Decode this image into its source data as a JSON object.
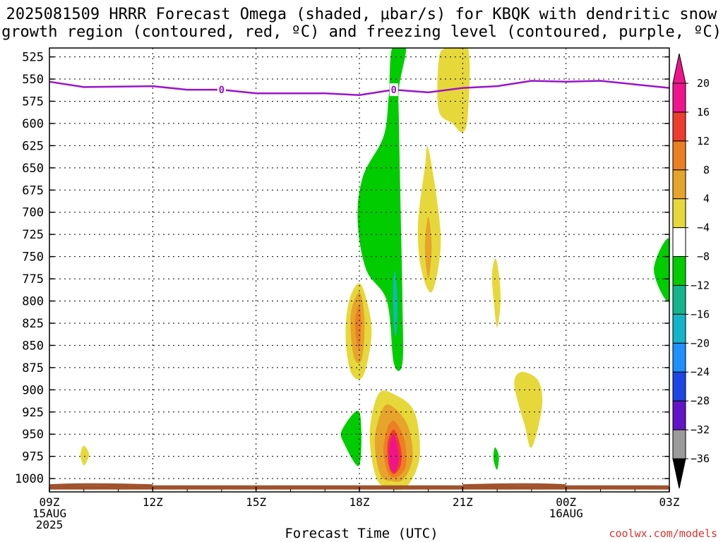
{
  "chart_data": {
    "type": "heatmap",
    "title": "2025081509 HRRR Forecast Omega (shaded, μbar/s) for KBQK with dendritic snow",
    "subtitle": "growth region (contoured, red, ºC) and freezing level (contoured, purple, ºC)",
    "xlabel": "Forecast Time (UTC)",
    "credit": "coolwx.com/models",
    "y_axis": {
      "scale": "pressure (inverted)",
      "ylim": [
        1015,
        515
      ],
      "ticks": [
        "525",
        "550",
        "575",
        "600",
        "625",
        "650",
        "675",
        "700",
        "725",
        "750",
        "775",
        "800",
        "825",
        "850",
        "875",
        "900",
        "925",
        "950",
        "975",
        "1000"
      ]
    },
    "x_axis": {
      "xlim_hours": [
        0,
        18
      ],
      "ticks": [
        {
          "hour": 0,
          "lines": [
            "09Z",
            "15AUG",
            "2025"
          ]
        },
        {
          "hour": 3,
          "lines": [
            "12Z"
          ]
        },
        {
          "hour": 6,
          "lines": [
            "15Z"
          ]
        },
        {
          "hour": 9,
          "lines": [
            "18Z"
          ]
        },
        {
          "hour": 12,
          "lines": [
            "21Z"
          ]
        },
        {
          "hour": 15,
          "lines": [
            "00Z",
            "16AUG"
          ]
        },
        {
          "hour": 18,
          "lines": [
            "03Z"
          ]
        }
      ]
    },
    "grid": true,
    "colorbar": {
      "labels": [
        "20",
        "16",
        "12",
        "8",
        "4",
        "−4",
        "−8",
        "−12",
        "−16",
        "−20",
        "−24",
        "−28",
        "−32",
        "−36"
      ],
      "colors": [
        "#f0148c",
        "#ee3c2e",
        "#ec7f22",
        "#e6a42c",
        "#e6d83a",
        "#ffffff",
        "#00cc00",
        "#14b48c",
        "#14b4c8",
        "#1e90ff",
        "#1e46e6",
        "#6414c8",
        "#9b14c8",
        "#9b9b9b"
      ],
      "top_arrow_color": "#f0148c",
      "bottom_arrow_color": "#000000"
    },
    "freezing_level": {
      "label": "0",
      "color": "#9b14c8",
      "points": [
        [
          0,
          553
        ],
        [
          1,
          559
        ],
        [
          3,
          558
        ],
        [
          4,
          562
        ],
        [
          5,
          562
        ],
        [
          6,
          566
        ],
        [
          8,
          566
        ],
        [
          9,
          568
        ],
        [
          10,
          562
        ],
        [
          11,
          565
        ],
        [
          12,
          560
        ],
        [
          13,
          558
        ],
        [
          14,
          552
        ],
        [
          15,
          553
        ],
        [
          16,
          552
        ],
        [
          17,
          556
        ],
        [
          18,
          560
        ]
      ],
      "label_hours": [
        5,
        10
      ]
    },
    "omega_features": [
      {
        "name": "green ascent column",
        "color": "#00cc00",
        "points": [
          [
            9.95,
            515
          ],
          [
            10.35,
            515
          ],
          [
            10.15,
            560
          ],
          [
            10.15,
            600
          ],
          [
            10.2,
            700
          ],
          [
            10.25,
            800
          ],
          [
            10.25,
            870
          ],
          [
            10.0,
            870
          ],
          [
            9.8,
            800
          ],
          [
            9.2,
            765
          ],
          [
            8.95,
            710
          ],
          [
            9.1,
            660
          ],
          [
            9.7,
            615
          ],
          [
            9.85,
            570
          ]
        ]
      },
      {
        "name": "core of column",
        "color": "#14b4c8",
        "points": [
          [
            10.0,
            770
          ],
          [
            10.05,
            770
          ],
          [
            10.1,
            800
          ],
          [
            10.08,
            835
          ],
          [
            10.02,
            835
          ],
          [
            9.98,
            800
          ]
        ]
      },
      {
        "name": "upper positive omega",
        "color": "#e6d83a",
        "points": [
          [
            11.5,
            515
          ],
          [
            12.15,
            515
          ],
          [
            12.15,
            590
          ],
          [
            12.0,
            610
          ],
          [
            11.7,
            600
          ],
          [
            11.3,
            585
          ],
          [
            11.3,
            530
          ]
        ]
      },
      {
        "name": "mid positive omega",
        "color": "#e6d83a",
        "points": [
          [
            11.0,
            628
          ],
          [
            11.3,
            700
          ],
          [
            11.35,
            745
          ],
          [
            11.1,
            790
          ],
          [
            10.8,
            765
          ],
          [
            10.7,
            715
          ],
          [
            10.9,
            650
          ]
        ]
      },
      {
        "name": "mid positive omega core",
        "color": "#e6a42c",
        "points": [
          [
            11.0,
            705
          ],
          [
            11.1,
            740
          ],
          [
            11.0,
            775
          ],
          [
            10.9,
            740
          ]
        ]
      },
      {
        "name": "low positive omega",
        "color": "#e6d83a",
        "points": [
          [
            9.0,
            780
          ],
          [
            9.25,
            805
          ],
          [
            9.35,
            840
          ],
          [
            9.1,
            885
          ],
          [
            8.75,
            880
          ],
          [
            8.6,
            840
          ],
          [
            8.7,
            800
          ]
        ]
      },
      {
        "name": "low positive omega mid",
        "color": "#e6a42c",
        "points": [
          [
            9.0,
            790
          ],
          [
            9.15,
            820
          ],
          [
            9.1,
            860
          ],
          [
            8.95,
            870
          ],
          [
            8.8,
            855
          ],
          [
            8.75,
            815
          ]
        ]
      },
      {
        "name": "low positive omega core",
        "color": "#ec7f22",
        "points": [
          [
            9.0,
            805
          ],
          [
            9.05,
            825
          ],
          [
            9.0,
            855
          ],
          [
            8.9,
            840
          ],
          [
            8.88,
            820
          ]
        ]
      },
      {
        "name": "lower positive omega",
        "color": "#e6d83a",
        "points": [
          [
            10.0,
            905
          ],
          [
            10.6,
            925
          ],
          [
            10.75,
            975
          ],
          [
            10.4,
            1008
          ],
          [
            9.95,
            1012
          ],
          [
            9.5,
            1000
          ],
          [
            9.3,
            950
          ],
          [
            9.55,
            905
          ]
        ]
      },
      {
        "name": "lower positive omega 2",
        "color": "#e6a42c",
        "points": [
          [
            10.0,
            920
          ],
          [
            10.4,
            940
          ],
          [
            10.55,
            975
          ],
          [
            10.3,
            1000
          ],
          [
            9.95,
            1003
          ],
          [
            9.6,
            995
          ],
          [
            9.45,
            955
          ],
          [
            9.7,
            920
          ]
        ]
      },
      {
        "name": "lower positive omega 3",
        "color": "#ec7f22",
        "points": [
          [
            10.0,
            935
          ],
          [
            10.3,
            955
          ],
          [
            10.35,
            985
          ],
          [
            10.1,
            998
          ],
          [
            9.85,
            995
          ],
          [
            9.7,
            970
          ],
          [
            9.8,
            945
          ]
        ]
      },
      {
        "name": "lower positive omega 4",
        "color": "#ee3c2e",
        "points": [
          [
            10.0,
            945
          ],
          [
            10.2,
            965
          ],
          [
            10.2,
            985
          ],
          [
            10.0,
            995
          ],
          [
            9.85,
            985
          ],
          [
            9.82,
            960
          ]
        ]
      },
      {
        "name": "lower positive omega core",
        "color": "#f0148c",
        "points": [
          [
            10.0,
            950
          ],
          [
            10.15,
            975
          ],
          [
            10.05,
            992
          ],
          [
            9.9,
            988
          ],
          [
            9.87,
            965
          ]
        ]
      },
      {
        "name": "small green low",
        "color": "#00cc00",
        "points": [
          [
            9.0,
            925
          ],
          [
            9.0,
            985
          ],
          [
            8.55,
            960
          ],
          [
            8.5,
            945
          ]
        ]
      },
      {
        "name": "left blob",
        "color": "#e6d83a",
        "points": [
          [
            1.0,
            963
          ],
          [
            1.15,
            973
          ],
          [
            1.0,
            985
          ],
          [
            0.9,
            973
          ]
        ]
      },
      {
        "name": "small green right",
        "color": "#00cc00",
        "points": [
          [
            12.95,
            965
          ],
          [
            13.05,
            975
          ],
          [
            13.0,
            990
          ],
          [
            12.9,
            980
          ],
          [
            12.9,
            970
          ]
        ]
      },
      {
        "name": "thin yellow",
        "color": "#e6d83a",
        "points": [
          [
            12.95,
            752
          ],
          [
            13.05,
            770
          ],
          [
            13.1,
            800
          ],
          [
            13.0,
            830
          ],
          [
            12.9,
            800
          ],
          [
            12.85,
            770
          ]
        ]
      },
      {
        "name": "right yellow blob",
        "color": "#e6d83a",
        "points": [
          [
            13.7,
            880
          ],
          [
            14.2,
            890
          ],
          [
            14.3,
            920
          ],
          [
            14.0,
            965
          ],
          [
            13.8,
            940
          ],
          [
            13.5,
            895
          ]
        ]
      },
      {
        "name": "far right green",
        "color": "#00cc00",
        "points": [
          [
            18.0,
            730
          ],
          [
            18.0,
            800
          ],
          [
            17.55,
            765
          ]
        ]
      }
    ],
    "ground": {
      "color": "#a0522d",
      "level_hPa": 1010
    }
  },
  "xlabel": "Forecast Time (UTC)",
  "credit": "coolwx.com/models"
}
